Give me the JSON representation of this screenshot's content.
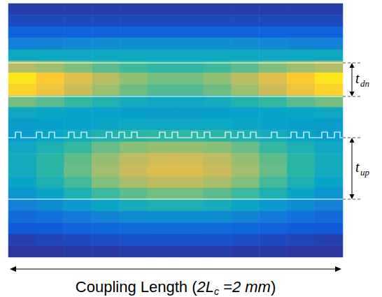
{
  "chart_data": {
    "type": "heatmap",
    "x_label": [
      {
        "text": "Coupling Length (",
        "style": "normal"
      },
      {
        "text": "2L",
        "style": "italic"
      },
      {
        "text": "c",
        "style": "italic-sub"
      },
      {
        "text": " =2 mm",
        "style": "italic"
      },
      {
        "text": ")",
        "style": "normal"
      }
    ],
    "annotations": [
      {
        "base": "t",
        "sub": "dn"
      },
      {
        "base": "t",
        "sub": "up"
      }
    ],
    "tick_labels": false,
    "zlim": [
      0,
      1
    ],
    "cells": [
      [
        0.05,
        0.05,
        0.05,
        0.05,
        0.05,
        0.05,
        0.05,
        0.05,
        0.05,
        0.05,
        0.05,
        0.05
      ],
      [
        0.08,
        0.08,
        0.08,
        0.08,
        0.08,
        0.08,
        0.08,
        0.08,
        0.08,
        0.08,
        0.08,
        0.08
      ],
      [
        0.15,
        0.15,
        0.15,
        0.15,
        0.15,
        0.15,
        0.15,
        0.15,
        0.15,
        0.15,
        0.15,
        0.15
      ],
      [
        0.25,
        0.26,
        0.27,
        0.29,
        0.3,
        0.3,
        0.3,
        0.3,
        0.29,
        0.27,
        0.26,
        0.25
      ],
      [
        0.4,
        0.4,
        0.4,
        0.4,
        0.4,
        0.4,
        0.4,
        0.4,
        0.4,
        0.4,
        0.4,
        0.4
      ],
      [
        0.7,
        0.66,
        0.61,
        0.56,
        0.52,
        0.5,
        0.5,
        0.52,
        0.56,
        0.61,
        0.66,
        0.7
      ],
      [
        0.95,
        0.88,
        0.79,
        0.71,
        0.64,
        0.6,
        0.6,
        0.64,
        0.71,
        0.79,
        0.88,
        0.95
      ],
      [
        0.9,
        0.83,
        0.74,
        0.66,
        0.59,
        0.55,
        0.55,
        0.59,
        0.66,
        0.74,
        0.83,
        0.9
      ],
      [
        0.6,
        0.56,
        0.51,
        0.46,
        0.42,
        0.4,
        0.4,
        0.42,
        0.46,
        0.51,
        0.56,
        0.6
      ],
      [
        0.4,
        0.39,
        0.38,
        0.37,
        0.36,
        0.35,
        0.35,
        0.36,
        0.37,
        0.38,
        0.39,
        0.4
      ],
      [
        0.35,
        0.36,
        0.37,
        0.39,
        0.4,
        0.4,
        0.4,
        0.4,
        0.39,
        0.37,
        0.36,
        0.35
      ],
      [
        0.35,
        0.38,
        0.42,
        0.46,
        0.49,
        0.5,
        0.5,
        0.49,
        0.46,
        0.42,
        0.38,
        0.35
      ],
      [
        0.4,
        0.45,
        0.51,
        0.58,
        0.63,
        0.65,
        0.65,
        0.63,
        0.58,
        0.51,
        0.45,
        0.4
      ],
      [
        0.42,
        0.49,
        0.57,
        0.65,
        0.72,
        0.75,
        0.75,
        0.72,
        0.65,
        0.57,
        0.49,
        0.42
      ],
      [
        0.42,
        0.49,
        0.58,
        0.67,
        0.74,
        0.78,
        0.78,
        0.74,
        0.67,
        0.58,
        0.49,
        0.42
      ],
      [
        0.38,
        0.45,
        0.53,
        0.62,
        0.69,
        0.72,
        0.72,
        0.69,
        0.62,
        0.53,
        0.45,
        0.38
      ],
      [
        0.32,
        0.38,
        0.45,
        0.52,
        0.57,
        0.6,
        0.6,
        0.57,
        0.52,
        0.45,
        0.38,
        0.32
      ],
      [
        0.25,
        0.29,
        0.34,
        0.39,
        0.43,
        0.45,
        0.45,
        0.43,
        0.39,
        0.34,
        0.29,
        0.25
      ],
      [
        0.18,
        0.2,
        0.23,
        0.26,
        0.29,
        0.3,
        0.3,
        0.29,
        0.26,
        0.23,
        0.2,
        0.18
      ],
      [
        0.12,
        0.13,
        0.15,
        0.16,
        0.17,
        0.18,
        0.18,
        0.17,
        0.16,
        0.15,
        0.13,
        0.12
      ],
      [
        0.06,
        0.07,
        0.08,
        0.09,
        0.1,
        0.1,
        0.1,
        0.1,
        0.09,
        0.08,
        0.07,
        0.06
      ],
      [
        0.03,
        0.03,
        0.04,
        0.04,
        0.05,
        0.05,
        0.05,
        0.05,
        0.04,
        0.04,
        0.03,
        0.03
      ]
    ]
  }
}
